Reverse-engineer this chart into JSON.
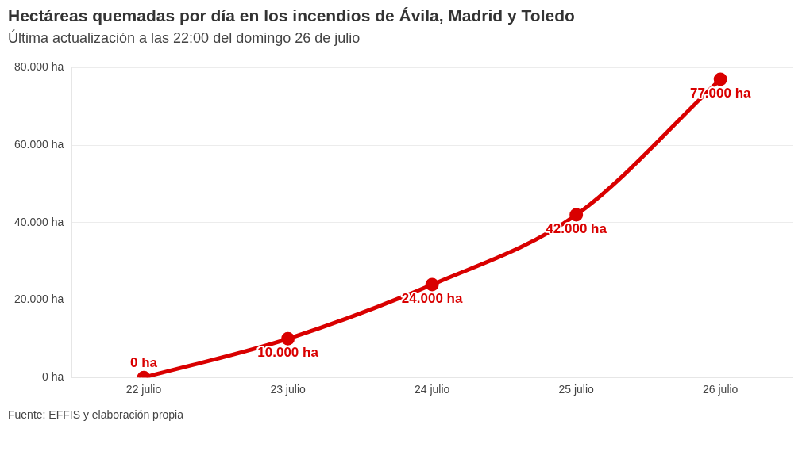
{
  "chart_data": {
    "type": "line",
    "title": "Hectáreas quemadas por día en los incendios de Ávila, Madrid y Toledo",
    "subtitle": "Última actualización a las 22:00 del domingo 26 de julio",
    "categories": [
      "22 julio",
      "23 julio",
      "24 julio",
      "25 julio",
      "26 julio"
    ],
    "series": [
      {
        "color": "#d90000",
        "values": [
          0,
          10000,
          24000,
          42000,
          77000
        ],
        "value_labels": [
          "0 ha",
          "10.000 ha",
          "24.000 ha",
          "42.000 ha",
          "77.000 ha"
        ]
      }
    ],
    "ylim": [
      0,
      80000
    ],
    "yticks": [
      {
        "value": 0,
        "label": "0 ha"
      },
      {
        "value": 20000,
        "label": "20.000 ha"
      },
      {
        "value": 40000,
        "label": "40.000 ha"
      },
      {
        "value": 60000,
        "label": "60.000 ha"
      },
      {
        "value": 80000,
        "label": "80.000 ha"
      }
    ],
    "grid": "y",
    "legend": false,
    "marker": "circle",
    "line_style": "solid",
    "annotations": [
      "Fuente: EFFIS y elaboración propia"
    ]
  }
}
